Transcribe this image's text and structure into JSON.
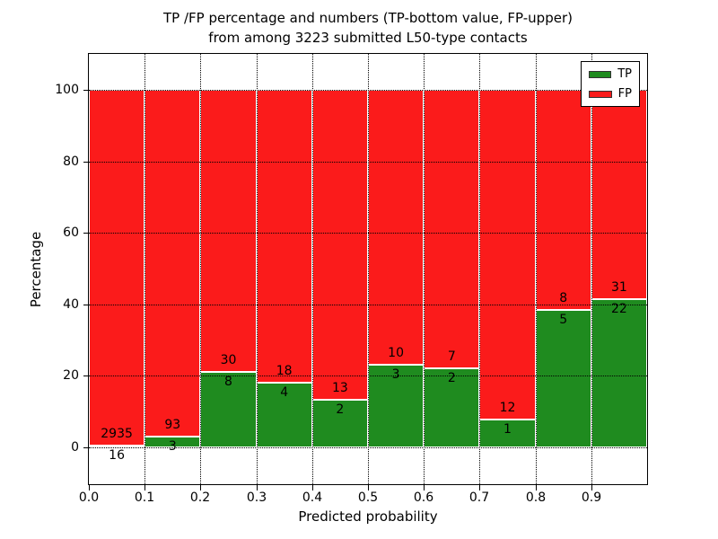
{
  "title": {
    "line1": "TP /FP percentage and numbers (TP-bottom value, FP-upper)",
    "line2": "from among 3223 submitted L50-type contacts"
  },
  "y_axis": {
    "label": "Percentage",
    "ticks": [
      0,
      20,
      40,
      60,
      80,
      100
    ]
  },
  "x_axis": {
    "label": "Predicted probability",
    "ticks": [
      "0.0",
      "0.1",
      "0.2",
      "0.3",
      "0.4",
      "0.5",
      "0.6",
      "0.7",
      "0.8",
      "0.9"
    ]
  },
  "legend": {
    "items": [
      {
        "label": "TP",
        "color": "#1f8b1f"
      },
      {
        "label": "FP",
        "color": "#fb1b1b"
      }
    ]
  },
  "chart_data": {
    "type": "bar",
    "stacked": true,
    "normalized_to_percent": true,
    "title": "TP /FP percentage and numbers (TP-bottom value, FP-upper) from among 3223 submitted L50-type contacts",
    "xlabel": "Predicted probability",
    "ylabel": "Percentage",
    "xlim": [
      0.0,
      1.0
    ],
    "ylim": [
      -11,
      110
    ],
    "grid": "dotted",
    "legend_position": "upper right",
    "bin_width": 0.1,
    "categories": [
      "0.0",
      "0.1",
      "0.2",
      "0.3",
      "0.4",
      "0.5",
      "0.6",
      "0.7",
      "0.8",
      "0.9"
    ],
    "series": [
      {
        "name": "TP",
        "color": "#1f8b1f",
        "counts": [
          16,
          3,
          8,
          4,
          2,
          3,
          2,
          1,
          5,
          22
        ]
      },
      {
        "name": "FP",
        "color": "#fb1b1b",
        "counts": [
          2935,
          93,
          30,
          18,
          13,
          10,
          7,
          12,
          8,
          31
        ]
      }
    ],
    "tp_percent": [
      0.54,
      3.13,
      21.05,
      18.18,
      13.33,
      23.08,
      22.22,
      7.69,
      38.46,
      41.51
    ],
    "total_contacts": 3223
  }
}
